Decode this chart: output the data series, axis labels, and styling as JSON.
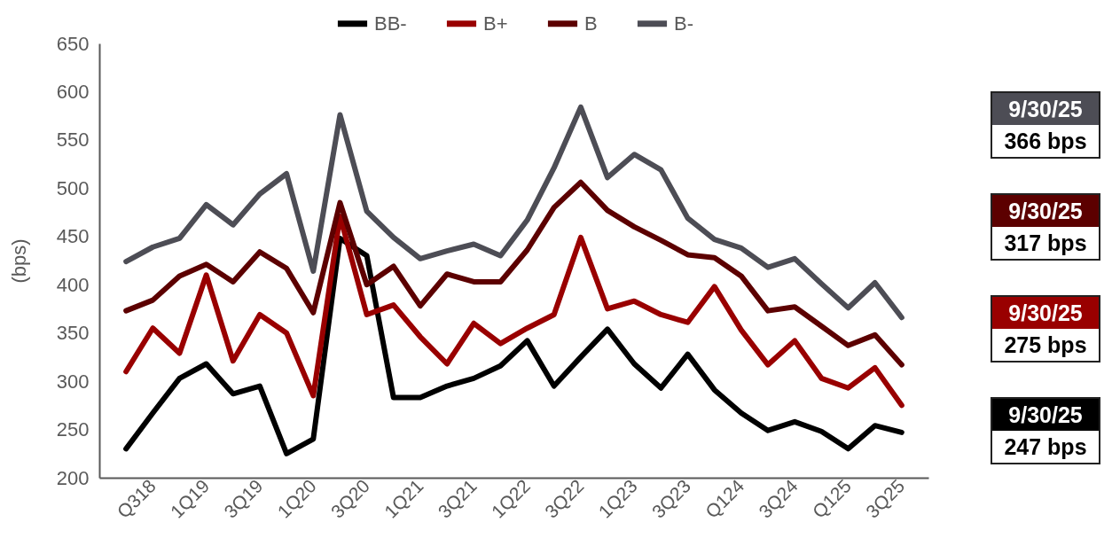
{
  "chart_data": {
    "type": "line",
    "ylabel": "(bps)",
    "categories": [
      null,
      "Q318",
      null,
      "1Q19",
      null,
      "3Q19",
      null,
      "1Q20",
      null,
      "3Q20",
      null,
      "1Q21",
      null,
      "3Q21",
      null,
      "1Q22",
      null,
      "3Q22",
      null,
      "1Q23",
      null,
      "3Q23",
      null,
      "Q124",
      null,
      "3Q24",
      null,
      "Q125",
      null,
      "3Q25"
    ],
    "series": [
      {
        "name": "BB-",
        "color": "#000000",
        "values": [
          230,
          267,
          303,
          318,
          287,
          295,
          225,
          240,
          448,
          430,
          283,
          283,
          295,
          303,
          316,
          342,
          295,
          325,
          354,
          318,
          293,
          328,
          291,
          267,
          249,
          258,
          248,
          230,
          254,
          247
        ]
      },
      {
        "name": "B+",
        "color": "#990000",
        "values": [
          310,
          355,
          329,
          410,
          321,
          369,
          350,
          285,
          471,
          369,
          379,
          346,
          318,
          360,
          339,
          355,
          369,
          449,
          375,
          383,
          369,
          361,
          398,
          353,
          317,
          342,
          303,
          293,
          314,
          275
        ]
      },
      {
        "name": "B",
        "color": "#5c0000",
        "values": [
          373,
          384,
          409,
          421,
          403,
          434,
          417,
          371,
          485,
          400,
          419,
          378,
          411,
          403,
          403,
          436,
          480,
          506,
          477,
          460,
          446,
          431,
          428,
          409,
          373,
          377,
          357,
          337,
          348,
          317
        ]
      },
      {
        "name": "B-",
        "color": "#4d4d55",
        "values": [
          424,
          439,
          448,
          483,
          462,
          494,
          515,
          414,
          576,
          476,
          449,
          427,
          435,
          442,
          430,
          467,
          521,
          584,
          511,
          535,
          519,
          469,
          447,
          438,
          418,
          427,
          401,
          376,
          402,
          366
        ]
      }
    ],
    "ylim": [
      200,
      650
    ],
    "yticks": [
      200,
      250,
      300,
      350,
      400,
      450,
      500,
      550,
      600,
      650
    ],
    "grid": false,
    "legend": "top",
    "line_style": "solid",
    "marker": "none",
    "annotations": [
      "9/30/25",
      "366 bps",
      "9/30/25",
      "317 bps",
      "9/30/25",
      "275 bps",
      "9/30/25",
      "247 bps"
    ]
  }
}
